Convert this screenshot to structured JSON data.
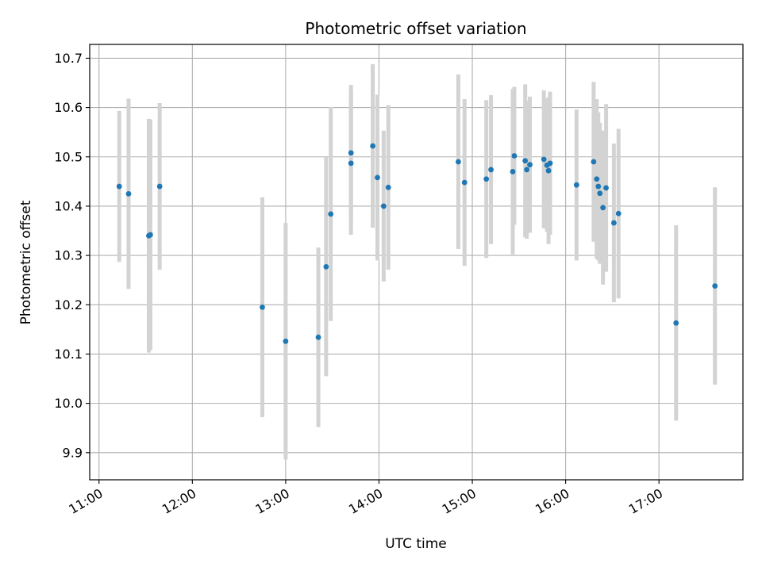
{
  "chart_data": {
    "type": "scatter",
    "title": "Photometric offset variation",
    "xlabel": "UTC time",
    "ylabel": "Photometric offset",
    "grid": true,
    "xlim": [
      10.9,
      17.9
    ],
    "ylim": [
      9.845,
      10.728
    ],
    "x_ticks": [
      {
        "value": 11,
        "label": "11:00"
      },
      {
        "value": 12,
        "label": "12:00"
      },
      {
        "value": 13,
        "label": "13:00"
      },
      {
        "value": 14,
        "label": "14:00"
      },
      {
        "value": 15,
        "label": "15:00"
      },
      {
        "value": 16,
        "label": "16:00"
      },
      {
        "value": 17,
        "label": "17:00"
      }
    ],
    "y_ticks": [
      "9.9",
      "10.0",
      "10.1",
      "10.2",
      "10.3",
      "10.4",
      "10.5",
      "10.6",
      "10.7"
    ],
    "colors": {
      "point": "#1f77b4",
      "errorbar": "#d3d3d3",
      "grid": "#b0b0b0"
    },
    "series": [
      {
        "points": [
          {
            "x": "11:13",
            "y": 10.44,
            "yerr": 0.153
          },
          {
            "x": "11:19",
            "y": 10.425,
            "yerr": 0.193
          },
          {
            "x": "11:32",
            "y": 10.34,
            "yerr": 0.237
          },
          {
            "x": "11:33",
            "y": 10.342,
            "yerr": 0.234
          },
          {
            "x": "11:39",
            "y": 10.44,
            "yerr": 0.169
          },
          {
            "x": "12:45",
            "y": 10.195,
            "yerr": 0.223
          },
          {
            "x": "13:00",
            "y": 10.126,
            "yerr": 0.24
          },
          {
            "x": "13:21",
            "y": 10.134,
            "yerr": 0.182
          },
          {
            "x": "13:26",
            "y": 10.277,
            "yerr": 0.222
          },
          {
            "x": "13:29",
            "y": 10.384,
            "yerr": 0.217
          },
          {
            "x": "13:42",
            "y": 10.487,
            "yerr": 0.145
          },
          {
            "x": "13:42",
            "y": 10.508,
            "yerr": 0.138
          },
          {
            "x": "13:56",
            "y": 10.522,
            "yerr": 0.166
          },
          {
            "x": "13:59",
            "y": 10.458,
            "yerr": 0.168
          },
          {
            "x": "14:03",
            "y": 10.4,
            "yerr": 0.153
          },
          {
            "x": "14:06",
            "y": 10.438,
            "yerr": 0.167
          },
          {
            "x": "14:51",
            "y": 10.49,
            "yerr": 0.177
          },
          {
            "x": "14:55",
            "y": 10.448,
            "yerr": 0.169
          },
          {
            "x": "15:09",
            "y": 10.455,
            "yerr": 0.16
          },
          {
            "x": "15:12",
            "y": 10.474,
            "yerr": 0.151
          },
          {
            "x": "15:26",
            "y": 10.47,
            "yerr": 0.168
          },
          {
            "x": "15:27",
            "y": 10.502,
            "yerr": 0.14
          },
          {
            "x": "15:34",
            "y": 10.492,
            "yerr": 0.155
          },
          {
            "x": "15:35",
            "y": 10.474,
            "yerr": 0.14
          },
          {
            "x": "15:37",
            "y": 10.484,
            "yerr": 0.138
          },
          {
            "x": "15:46",
            "y": 10.495,
            "yerr": 0.14
          },
          {
            "x": "15:48",
            "y": 10.483,
            "yerr": 0.135
          },
          {
            "x": "15:49",
            "y": 10.472,
            "yerr": 0.149
          },
          {
            "x": "15:50",
            "y": 10.487,
            "yerr": 0.145
          },
          {
            "x": "16:07",
            "y": 10.443,
            "yerr": 0.153
          },
          {
            "x": "16:18",
            "y": 10.49,
            "yerr": 0.162
          },
          {
            "x": "16:20",
            "y": 10.455,
            "yerr": 0.162
          },
          {
            "x": "16:21",
            "y": 10.44,
            "yerr": 0.15
          },
          {
            "x": "16:22",
            "y": 10.426,
            "yerr": 0.143
          },
          {
            "x": "16:24",
            "y": 10.397,
            "yerr": 0.156
          },
          {
            "x": "16:26",
            "y": 10.437,
            "yerr": 0.17
          },
          {
            "x": "16:31",
            "y": 10.366,
            "yerr": 0.161
          },
          {
            "x": "16:34",
            "y": 10.385,
            "yerr": 0.172
          },
          {
            "x": "17:11",
            "y": 10.163,
            "yerr": 0.198
          },
          {
            "x": "17:36",
            "y": 10.238,
            "yerr": 0.2
          }
        ]
      }
    ]
  }
}
